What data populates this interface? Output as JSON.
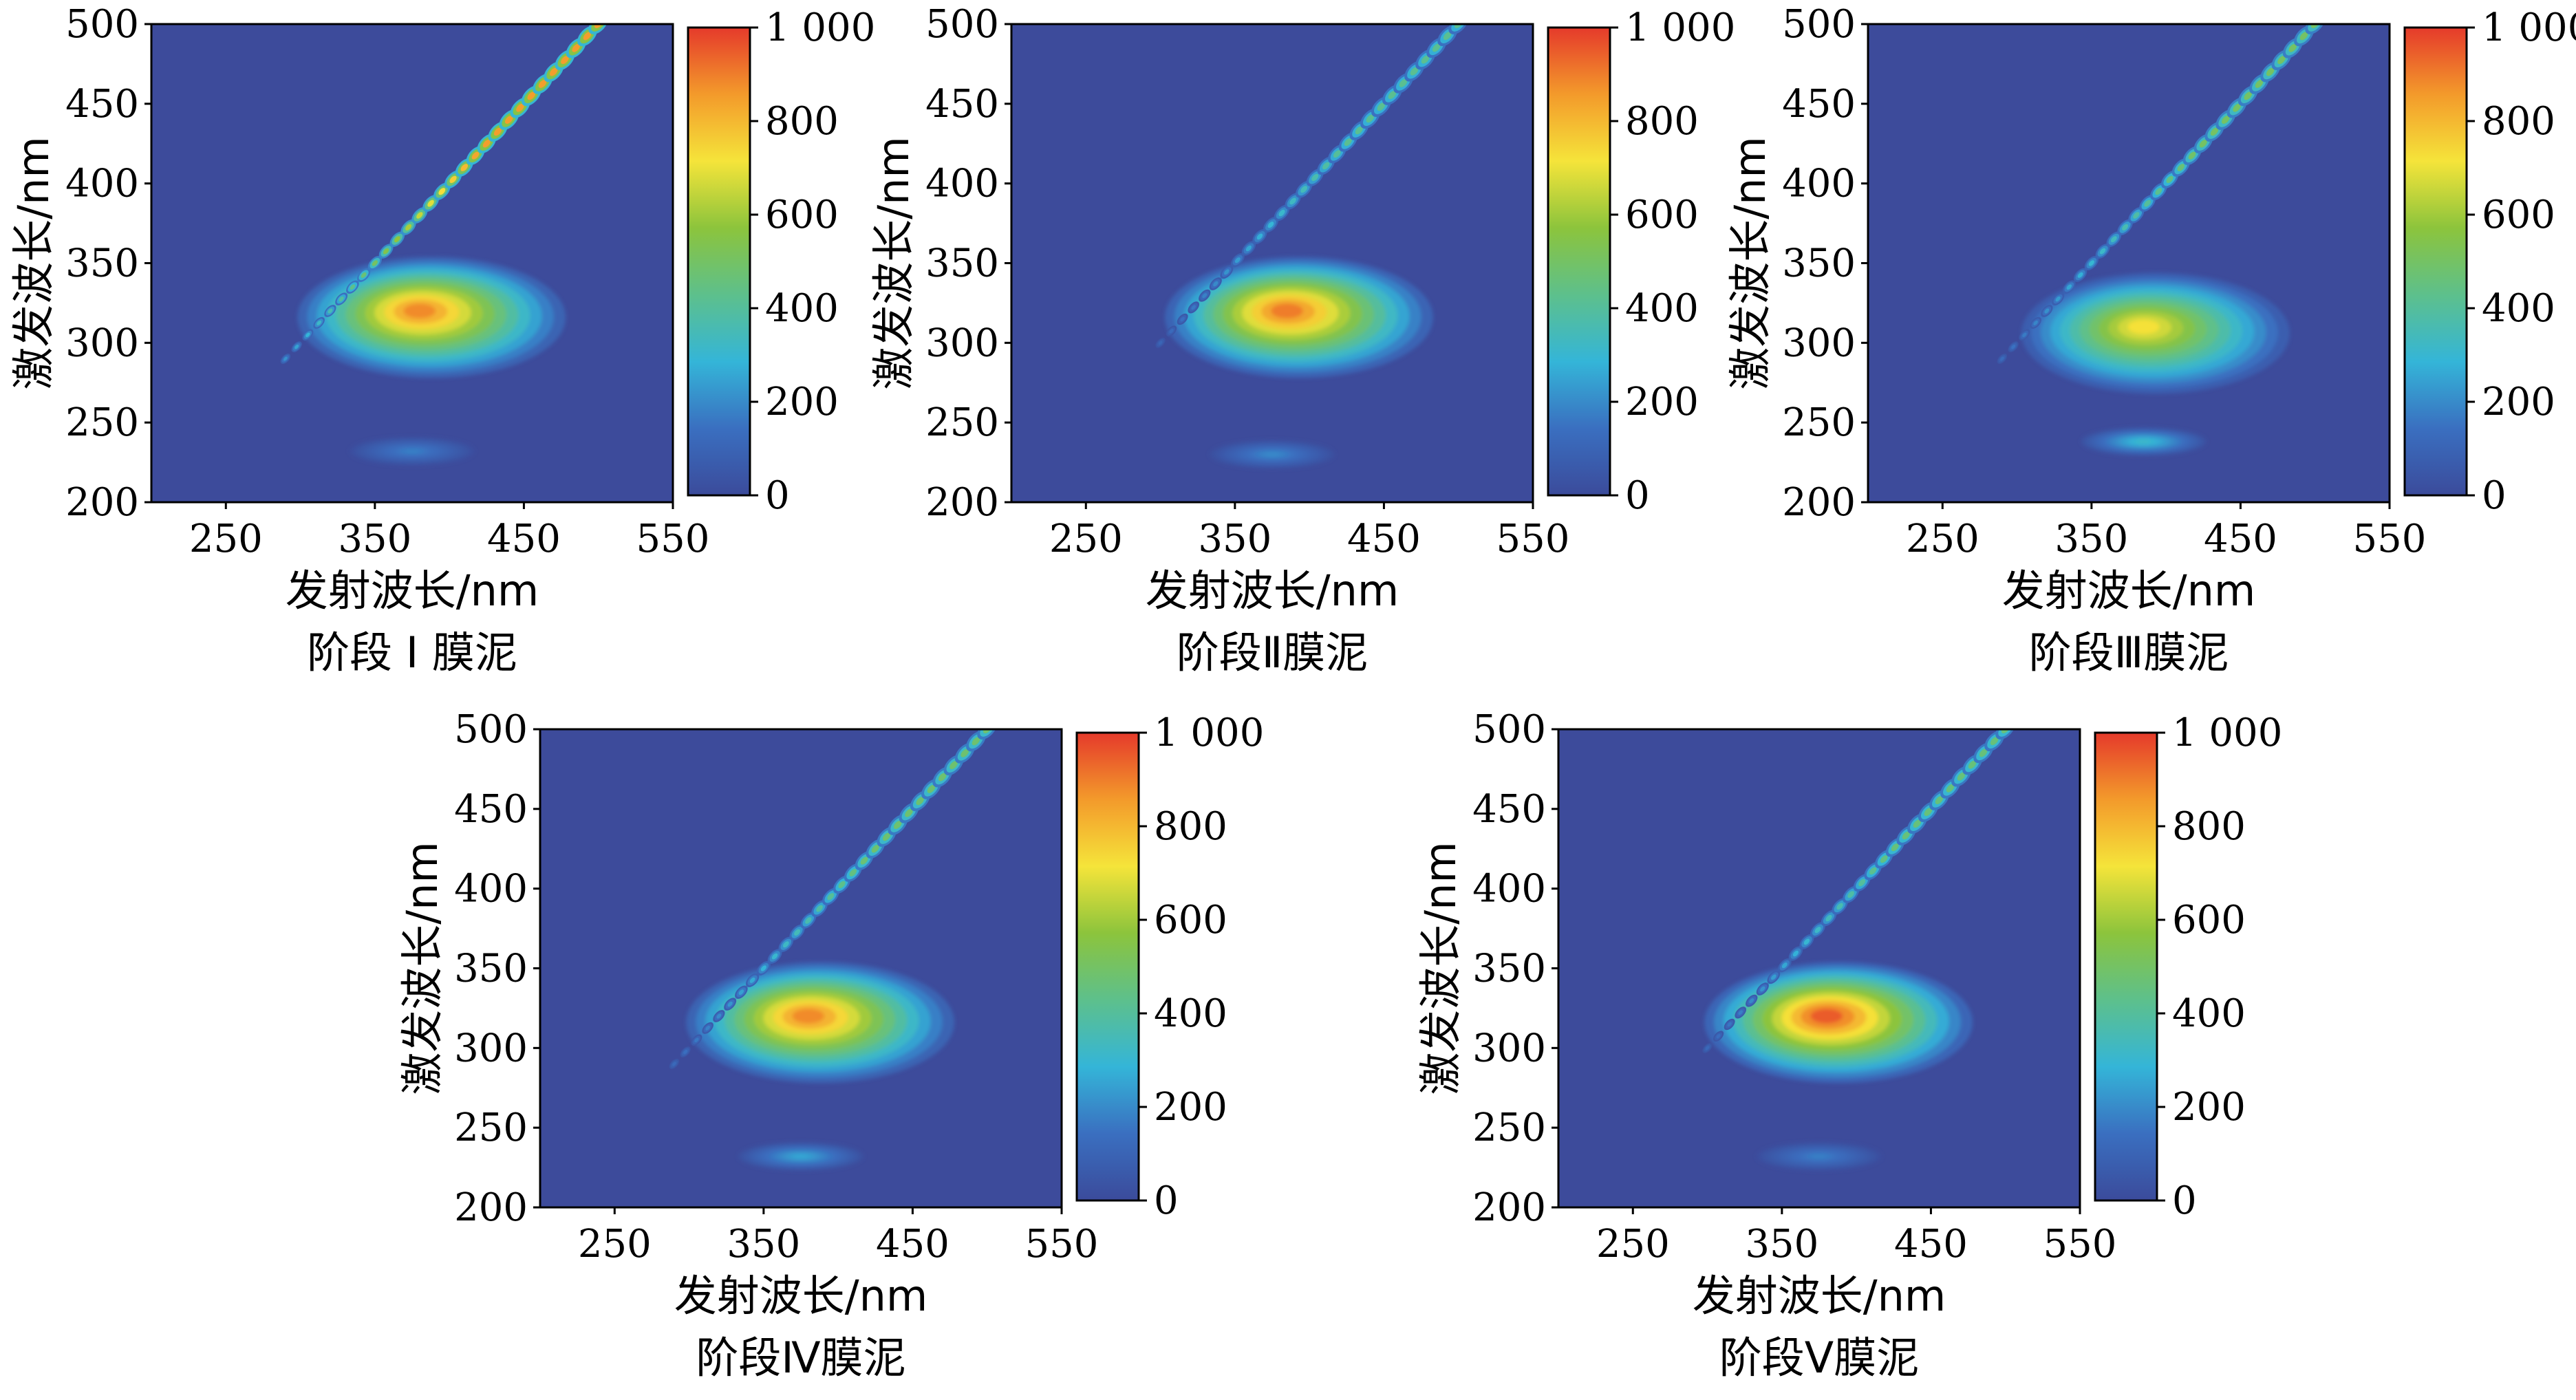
{
  "chart_data": [
    {
      "type": "heatmap",
      "title": "阶段 I 膜泥",
      "xlabel": "发射波长/nm",
      "ylabel": "激发波长/nm",
      "xlim": [
        200,
        550
      ],
      "ylim": [
        200,
        500
      ],
      "x_ticks": [
        "250",
        "350",
        "450",
        "550"
      ],
      "y_ticks": [
        "200",
        "250",
        "300",
        "350",
        "400",
        "450",
        "500"
      ],
      "colorbar_range": [
        0,
        1000
      ],
      "colorbar_ticks": [
        "0",
        "200",
        "400",
        "600",
        "800",
        "1 000"
      ],
      "scatter_band": {
        "start_ex": 290,
        "end_ex": 500,
        "peak_intensity": 850
      },
      "peaks": [
        {
          "em": 380,
          "ex": 320,
          "intensity": 880
        },
        {
          "em": 375,
          "ex": 232,
          "intensity": 180
        }
      ]
    },
    {
      "type": "heatmap",
      "title": "阶段Ⅱ膜泥",
      "xlabel": "发射波长/nm",
      "ylabel": "激发波长/nm",
      "xlim": [
        200,
        550
      ],
      "ylim": [
        200,
        500
      ],
      "x_ticks": [
        "250",
        "350",
        "450",
        "550"
      ],
      "y_ticks": [
        "200",
        "250",
        "300",
        "350",
        "400",
        "450",
        "500"
      ],
      "colorbar_range": [
        0,
        1000
      ],
      "colorbar_ticks": [
        "0",
        "200",
        "400",
        "600",
        "800",
        "1 000"
      ],
      "scatter_band": {
        "start_ex": 300,
        "end_ex": 500,
        "peak_intensity": 420
      },
      "peaks": [
        {
          "em": 385,
          "ex": 320,
          "intensity": 900
        },
        {
          "em": 375,
          "ex": 230,
          "intensity": 200
        }
      ]
    },
    {
      "type": "heatmap",
      "title": "阶段Ⅲ膜泥",
      "xlabel": "发射波长/nm",
      "ylabel": "激发波长/nm",
      "xlim": [
        200,
        550
      ],
      "ylim": [
        200,
        500
      ],
      "x_ticks": [
        "250",
        "350",
        "450",
        "550"
      ],
      "y_ticks": [
        "200",
        "250",
        "300",
        "350",
        "400",
        "450",
        "500"
      ],
      "colorbar_range": [
        0,
        1000
      ],
      "colorbar_ticks": [
        "0",
        "200",
        "400",
        "600",
        "800",
        "1 000"
      ],
      "scatter_band": {
        "start_ex": 290,
        "end_ex": 500,
        "peak_intensity": 500
      },
      "peaks": [
        {
          "em": 385,
          "ex": 310,
          "intensity": 720
        },
        {
          "em": 385,
          "ex": 238,
          "intensity": 320
        }
      ]
    },
    {
      "type": "heatmap",
      "title": "阶段Ⅳ膜泥",
      "xlabel": "发射波长/nm",
      "ylabel": "激发波长/nm",
      "xlim": [
        200,
        550
      ],
      "ylim": [
        200,
        500
      ],
      "x_ticks": [
        "250",
        "350",
        "450",
        "550"
      ],
      "y_ticks": [
        "200",
        "250",
        "300",
        "350",
        "400",
        "450",
        "500"
      ],
      "colorbar_range": [
        0,
        1000
      ],
      "colorbar_ticks": [
        "0",
        "200",
        "400",
        "600",
        "800",
        "1 000"
      ],
      "scatter_band": {
        "start_ex": 290,
        "end_ex": 500,
        "peak_intensity": 480
      },
      "peaks": [
        {
          "em": 380,
          "ex": 320,
          "intensity": 880
        },
        {
          "em": 375,
          "ex": 232,
          "intensity": 260
        }
      ]
    },
    {
      "type": "heatmap",
      "title": "阶段Ⅴ膜泥",
      "xlabel": "发射波长/nm",
      "ylabel": "激发波长/nm",
      "xlim": [
        200,
        550
      ],
      "ylim": [
        200,
        500
      ],
      "x_ticks": [
        "250",
        "350",
        "450",
        "550"
      ],
      "y_ticks": [
        "200",
        "250",
        "300",
        "350",
        "400",
        "450",
        "500"
      ],
      "colorbar_range": [
        0,
        1000
      ],
      "colorbar_ticks": [
        "0",
        "200",
        "400",
        "600",
        "800",
        "1 000"
      ],
      "scatter_band": {
        "start_ex": 300,
        "end_ex": 500,
        "peak_intensity": 460
      },
      "peaks": [
        {
          "em": 380,
          "ex": 320,
          "intensity": 950
        },
        {
          "em": 375,
          "ex": 232,
          "intensity": 180
        }
      ]
    }
  ],
  "colors": {
    "background": "#3d4b9b",
    "colormap": [
      "#3b4b9b",
      "#3a6fc0",
      "#34b5d8",
      "#5dc08c",
      "#8cc43c",
      "#f5e43a",
      "#f39a2b",
      "#e53a2b"
    ]
  }
}
